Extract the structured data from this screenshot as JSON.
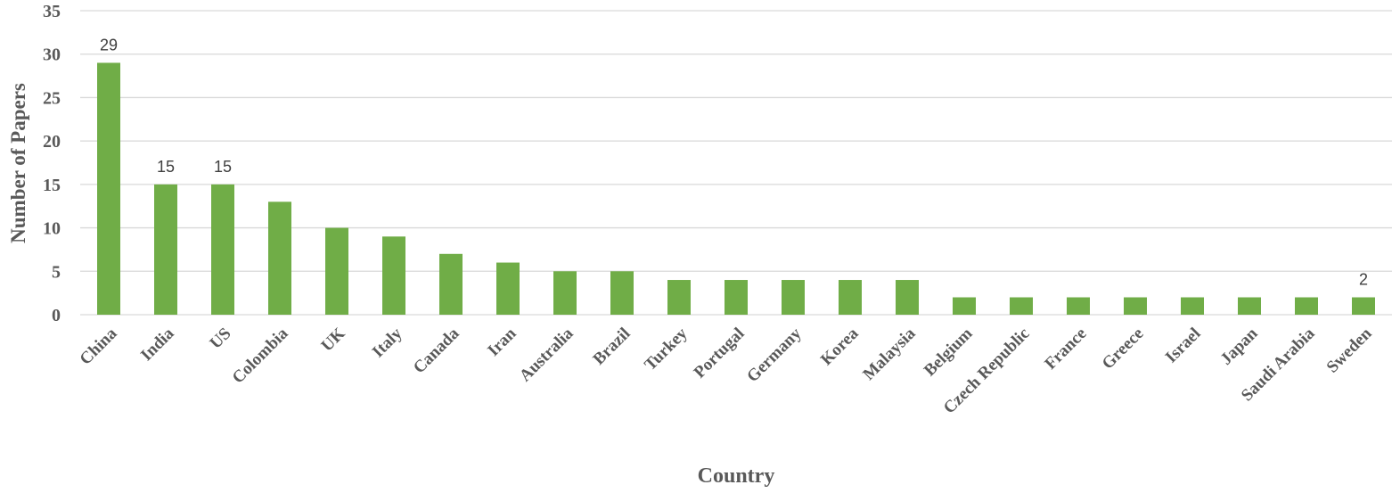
{
  "chart_data": {
    "type": "bar",
    "x_label": "Country",
    "y_label": "Number of Papers",
    "categories": [
      "China",
      "India",
      "US",
      "Colombia",
      "UK",
      "Italy",
      "Canada",
      "Iran",
      "Australia",
      "Brazil",
      "Turkey",
      "Portugal",
      "Germany",
      "Korea",
      "Malaysia",
      "Belgium",
      "Czech Republic",
      "France",
      "Greece",
      "Israel",
      "Japan",
      "Saudi Arabia",
      "Sweden"
    ],
    "values": [
      29,
      15,
      15,
      13,
      10,
      9,
      7,
      6,
      5,
      5,
      4,
      4,
      4,
      4,
      4,
      2,
      2,
      2,
      2,
      2,
      2,
      2,
      2
    ],
    "value_labels": [
      "29",
      "15",
      "15",
      null,
      null,
      null,
      null,
      null,
      null,
      null,
      null,
      null,
      null,
      null,
      null,
      null,
      null,
      null,
      null,
      null,
      null,
      null,
      "2"
    ],
    "color": "#70ad47",
    "ylim": [
      0,
      35
    ],
    "yticks": [
      0,
      5,
      10,
      15,
      20,
      25,
      30,
      35
    ],
    "grid": true
  }
}
